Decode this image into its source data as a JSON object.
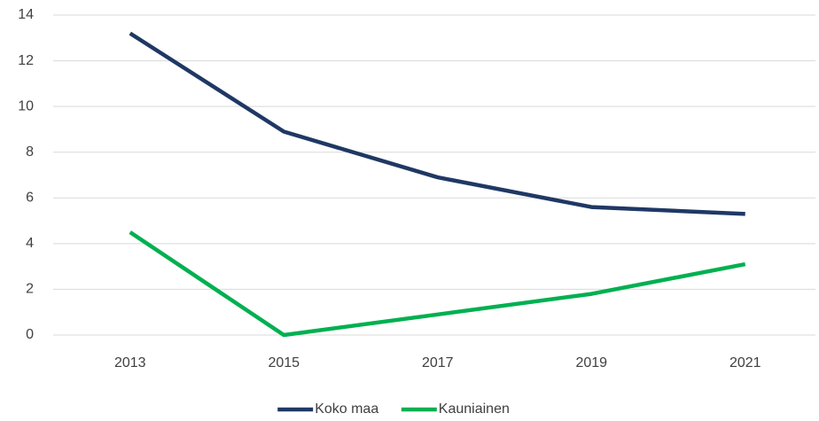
{
  "chart_data": {
    "type": "line",
    "categories": [
      "2013",
      "2015",
      "2017",
      "2019",
      "2021"
    ],
    "series": [
      {
        "name": "Koko maa",
        "color": "#1f3864",
        "values": [
          13.2,
          8.9,
          6.9,
          5.6,
          5.3
        ]
      },
      {
        "name": "Kauniainen",
        "color": "#00b050",
        "values": [
          4.5,
          0,
          0.9,
          1.8,
          3.1
        ]
      }
    ],
    "ylim": [
      0,
      14
    ],
    "yticks": [
      0,
      2,
      4,
      6,
      8,
      10,
      12,
      14
    ],
    "grid": true,
    "legend": "bottom"
  }
}
